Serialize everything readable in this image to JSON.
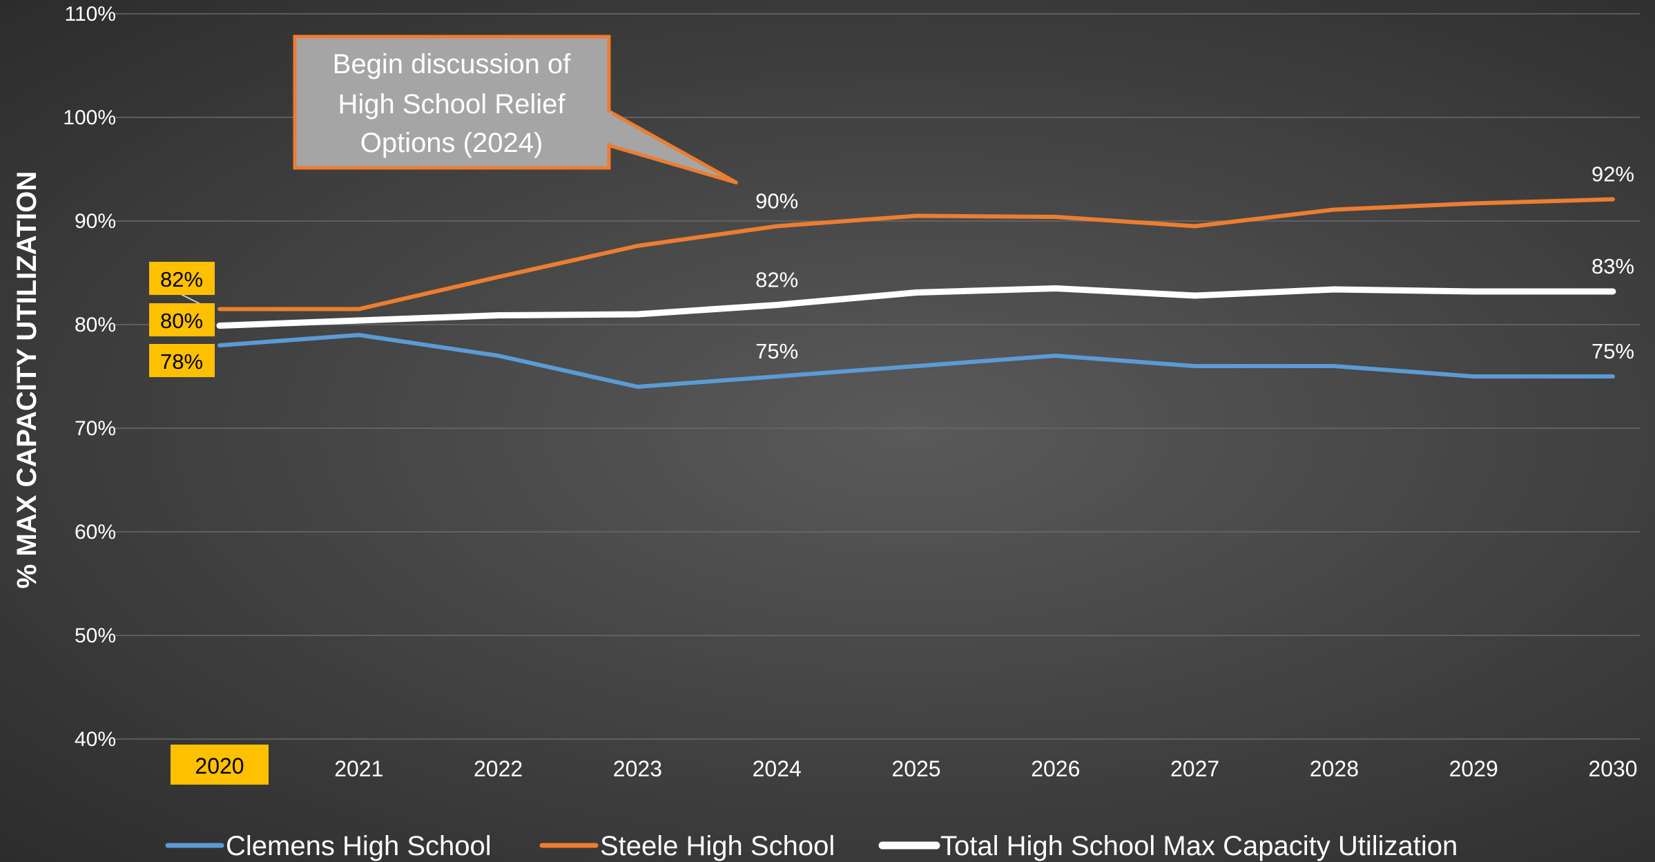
{
  "chart_data": {
    "type": "line",
    "title": "",
    "xlabel": "",
    "ylabel": "% MAX CAPACITY UTILIZATION",
    "ylim": [
      40,
      110
    ],
    "yticks": [
      "40%",
      "50%",
      "60%",
      "70%",
      "80%",
      "90%",
      "100%",
      "110%"
    ],
    "categories": [
      "2020",
      "2021",
      "2022",
      "2023",
      "2024",
      "2025",
      "2026",
      "2027",
      "2028",
      "2029",
      "2030"
    ],
    "highlighted_category": "2020",
    "grid": true,
    "legend_position": "bottom",
    "series": [
      {
        "name": "Clemens High School",
        "color": "#5b9bd5",
        "values": [
          78,
          79,
          77,
          74,
          75,
          76,
          77,
          76,
          76,
          75,
          75
        ],
        "labels": {
          "0": "78%",
          "4": "75%",
          "10": "75%"
        }
      },
      {
        "name": "Steele High School",
        "color": "#ed7d31",
        "values": [
          81.5,
          81.5,
          84.6,
          87.6,
          89.5,
          90.5,
          90.4,
          89.5,
          91.1,
          91.7,
          92.1
        ],
        "labels": {
          "0": "82%",
          "4": "90%",
          "10": "92%"
        }
      },
      {
        "name": "Total High School Max Capacity Utilization",
        "color": "#ffffff",
        "values": [
          79.9,
          80.4,
          80.9,
          81.0,
          81.9,
          83.1,
          83.5,
          82.8,
          83.4,
          83.2,
          83.2
        ],
        "labels": {
          "0": "80%",
          "4": "82%",
          "10": "83%"
        }
      }
    ],
    "annotation": {
      "lines": [
        "Begin discussion of",
        "High School Relief",
        "Options (2024)"
      ]
    }
  },
  "colors": {
    "highlight_box": "#ffc000",
    "callout_fill": "#a5a5a5",
    "callout_border": "#ed7d31"
  }
}
